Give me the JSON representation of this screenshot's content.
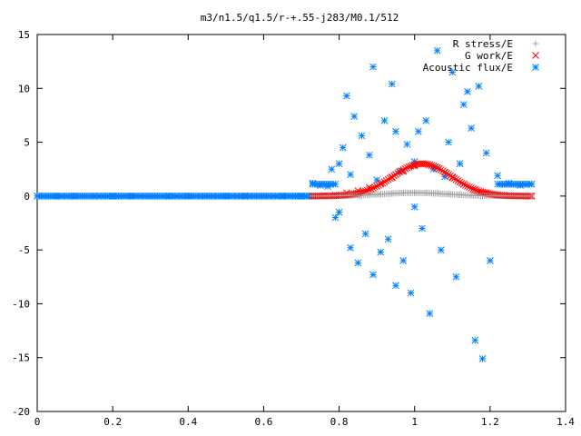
{
  "chart_data": {
    "type": "scatter",
    "title": "m3/n1.5/q1.5/r-+.55-j283/M0.1/512",
    "xlabel": "",
    "ylabel": "",
    "xlim": [
      0,
      1.4
    ],
    "ylim": [
      -20,
      15
    ],
    "x_ticks": [
      "0",
      "0.2",
      "0.4",
      "0.6",
      "0.8",
      "1",
      "1.2",
      "1.4"
    ],
    "y_ticks": [
      "15",
      "10",
      "5",
      "0",
      "-5",
      "-10",
      "-15",
      "-20"
    ],
    "x_tick_values": [
      0,
      0.2,
      0.4,
      0.6,
      0.8,
      1.0,
      1.2,
      1.4
    ],
    "y_tick_values": [
      15,
      10,
      5,
      0,
      -5,
      -10,
      -15,
      -20
    ],
    "grid": false,
    "legend_position": "top-right",
    "series": [
      {
        "name": "R stress/E",
        "marker": "plus",
        "color": "#a0a0a0",
        "x": [
          0.73,
          0.76,
          0.79,
          0.82,
          0.85,
          0.88,
          0.91,
          0.94,
          0.97,
          1.0,
          1.03,
          1.06,
          1.09,
          1.12,
          1.15,
          1.18,
          1.21,
          1.24,
          1.27,
          1.3
        ],
        "y": [
          0.0,
          0.0,
          0.0,
          0.05,
          0.1,
          0.15,
          0.2,
          0.25,
          0.3,
          0.3,
          0.3,
          0.25,
          0.2,
          0.15,
          0.1,
          0.05,
          0.0,
          0.0,
          0.0,
          0.0
        ]
      },
      {
        "name": "G work/E",
        "marker": "cross",
        "color": "#ff0000",
        "x": [
          0.73,
          0.76,
          0.79,
          0.82,
          0.85,
          0.88,
          0.91,
          0.94,
          0.97,
          1.0,
          1.02,
          1.04,
          1.06,
          1.08,
          1.1,
          1.13,
          1.16,
          1.19,
          1.22,
          1.25,
          1.28,
          1.31
        ],
        "y": [
          0.0,
          0.05,
          0.1,
          0.3,
          0.5,
          0.8,
          1.2,
          1.7,
          2.3,
          2.8,
          3.0,
          2.9,
          2.6,
          2.2,
          1.7,
          1.1,
          0.6,
          0.3,
          0.1,
          0.05,
          0.0,
          0.0
        ]
      },
      {
        "name": "Acoustic flux/E",
        "marker": "star",
        "color": "#0080ff",
        "x": [
          0.0,
          0.05,
          0.1,
          0.15,
          0.2,
          0.25,
          0.3,
          0.35,
          0.4,
          0.45,
          0.5,
          0.55,
          0.6,
          0.65,
          0.7,
          0.73,
          0.75,
          0.77,
          0.78,
          0.79,
          0.8,
          0.8,
          0.81,
          0.82,
          0.83,
          0.83,
          0.84,
          0.85,
          0.86,
          0.87,
          0.88,
          0.89,
          0.89,
          0.9,
          0.91,
          0.92,
          0.93,
          0.94,
          0.95,
          0.95,
          0.96,
          0.97,
          0.98,
          0.99,
          1.0,
          1.0,
          1.01,
          1.02,
          1.03,
          1.04,
          1.05,
          1.06,
          1.07,
          1.08,
          1.09,
          1.1,
          1.11,
          1.12,
          1.13,
          1.14,
          1.15,
          1.16,
          1.17,
          1.18,
          1.19,
          1.2,
          1.22,
          1.25,
          1.28,
          1.31
        ],
        "y": [
          0.0,
          0.0,
          0.0,
          0.0,
          0.0,
          0.0,
          0.0,
          0.0,
          0.0,
          0.0,
          0.0,
          0.0,
          0.0,
          0.0,
          0.0,
          1.2,
          1.0,
          0.9,
          2.5,
          -2.0,
          3.0,
          -1.5,
          4.5,
          9.3,
          -4.8,
          2.0,
          7.4,
          -6.2,
          5.6,
          -3.5,
          3.8,
          12.0,
          -7.3,
          1.5,
          -5.2,
          7.0,
          -4.0,
          10.4,
          6.0,
          -8.3,
          2.3,
          -6.0,
          4.8,
          -9.0,
          3.2,
          -1.0,
          6.0,
          -3.0,
          7.0,
          -10.9,
          2.5,
          13.5,
          -5.0,
          1.8,
          5.0,
          11.5,
          -7.5,
          3.0,
          8.5,
          9.7,
          6.3,
          -13.4,
          10.2,
          -15.1,
          4.0,
          -6.0,
          1.9,
          1.2,
          1.0,
          1.1
        ]
      }
    ]
  }
}
